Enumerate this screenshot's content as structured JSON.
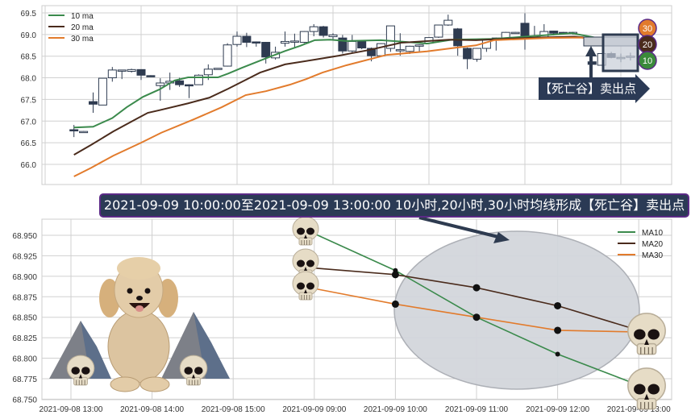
{
  "colors": {
    "ma10": "#3b8a4c",
    "ma20": "#4a2b1c",
    "ma30": "#e27b2c",
    "candle_dark": "#2e3b50",
    "annotation_bg": "#2b3a55",
    "annotation_border": "#5b2a86",
    "ellipse": "#d3d6dc"
  },
  "top_chart": {
    "annotation_label": "【死亡谷】卖出点",
    "badges": [
      "30",
      "20",
      "10"
    ]
  },
  "bottom_chart": {
    "title": "2021-09-09 10:00:00至2021-09-09 13:00:00 10小时,20小时,30小时均线形成【死亡谷】卖出点"
  },
  "decorations": [
    "poodle-illustration",
    "skull-icon",
    "mountain-illustration"
  ],
  "chart_data": [
    {
      "type": "candlestick",
      "ylim": [
        65.53,
        69.67
      ],
      "yticks": [
        "66.0",
        "66.5",
        "67.0",
        "67.5",
        "68.0",
        "68.5",
        "69.0",
        "69.5"
      ],
      "grid": true,
      "legend": "top-left",
      "legend_entries": [
        "10 ma",
        "20 ma",
        "30 ma"
      ],
      "ohlc": [
        [
          66.8,
          66.91,
          66.63,
          66.78
        ],
        [
          66.76,
          66.77,
          66.75,
          66.76
        ],
        [
          67.45,
          67.66,
          67.19,
          67.39
        ],
        [
          67.37,
          67.99,
          67.37,
          67.99
        ],
        [
          68.0,
          68.25,
          67.91,
          68.18
        ],
        [
          68.17,
          68.18,
          67.97,
          68.18
        ],
        [
          68.15,
          68.21,
          68.12,
          68.19
        ],
        [
          68.19,
          68.19,
          67.95,
          68.06
        ],
        [
          68.05,
          68.06,
          68.03,
          68.04
        ],
        [
          67.82,
          67.99,
          67.47,
          67.88
        ],
        [
          67.88,
          68.12,
          67.72,
          67.92
        ],
        [
          67.93,
          68.0,
          67.79,
          67.84
        ],
        [
          67.84,
          67.85,
          67.53,
          67.82
        ],
        [
          67.84,
          68.08,
          67.84,
          68.06
        ],
        [
          68.07,
          68.31,
          67.95,
          68.2
        ],
        [
          68.21,
          68.22,
          68.2,
          68.22
        ],
        [
          68.27,
          68.8,
          68.26,
          68.76
        ],
        [
          68.77,
          69.07,
          68.72,
          68.96
        ],
        [
          68.96,
          69.04,
          68.71,
          68.82
        ],
        [
          68.83,
          68.84,
          68.72,
          68.81
        ],
        [
          68.82,
          68.83,
          68.33,
          68.48
        ],
        [
          68.46,
          68.72,
          68.42,
          68.59
        ],
        [
          68.8,
          69.07,
          68.72,
          68.84
        ],
        [
          68.84,
          69.02,
          68.7,
          68.85
        ],
        [
          68.82,
          69.08,
          68.8,
          69.07
        ],
        [
          69.07,
          69.24,
          68.96,
          69.18
        ],
        [
          69.18,
          69.2,
          68.93,
          68.98
        ],
        [
          68.95,
          69.03,
          68.86,
          68.99
        ],
        [
          68.92,
          68.99,
          68.56,
          68.62
        ],
        [
          68.62,
          68.99,
          68.58,
          68.84
        ],
        [
          68.84,
          68.86,
          68.66,
          68.69
        ],
        [
          68.68,
          68.7,
          68.38,
          68.51
        ],
        [
          68.51,
          68.8,
          68.5,
          68.79
        ],
        [
          68.68,
          69.2,
          68.6,
          69.2
        ],
        [
          68.64,
          69.03,
          68.51,
          68.65
        ],
        [
          68.61,
          68.74,
          68.55,
          68.73
        ],
        [
          68.73,
          68.77,
          68.58,
          68.76
        ],
        [
          68.8,
          68.94,
          68.78,
          68.93
        ],
        [
          68.94,
          69.22,
          68.92,
          69.22
        ],
        [
          69.22,
          69.46,
          69.2,
          69.33
        ],
        [
          69.13,
          69.15,
          68.51,
          68.74
        ],
        [
          68.68,
          68.7,
          68.2,
          68.44
        ],
        [
          68.43,
          68.69,
          68.37,
          68.68
        ],
        [
          68.68,
          68.91,
          68.6,
          68.9
        ],
        [
          68.9,
          68.93,
          68.63,
          68.92
        ],
        [
          68.9,
          69.06,
          68.88,
          69.05
        ],
        [
          69.04,
          69.06,
          69.03,
          69.05
        ],
        [
          69.26,
          69.49,
          68.65,
          68.97
        ],
        [
          68.96,
          69.2,
          68.95,
          68.96
        ],
        [
          68.94,
          69.24,
          68.93,
          69.07
        ],
        [
          69.08,
          69.09,
          68.98,
          69.03
        ],
        [
          69.05,
          69.06,
          69.0,
          69.04
        ],
        [
          69.04,
          69.06,
          69.0,
          69.05
        ],
        null,
        [
          68.37,
          68.38,
          68.3,
          68.31
        ],
        [
          68.29,
          68.57,
          68.28,
          68.56
        ],
        [
          68.56,
          68.6,
          68.45,
          68.47
        ],
        [
          68.46,
          68.56,
          68.36,
          68.47
        ],
        [
          68.49,
          68.58,
          68.4,
          68.5
        ]
      ],
      "series": [
        {
          "name": "10 ma",
          "points": [
            [
              0,
              66.85
            ],
            [
              2,
              66.87
            ],
            [
              4,
              67.07
            ],
            [
              5.5,
              67.32
            ],
            [
              7.2,
              67.56
            ],
            [
              8.9,
              67.73
            ],
            [
              10.5,
              67.94
            ],
            [
              11.9,
              68.01
            ],
            [
              15,
              68.01
            ],
            [
              16.1,
              68.1
            ],
            [
              17.5,
              68.23
            ],
            [
              19.2,
              68.38
            ],
            [
              20.6,
              68.5
            ],
            [
              22,
              68.62
            ],
            [
              23.6,
              68.74
            ],
            [
              25.1,
              68.87
            ],
            [
              26.7,
              68.88
            ],
            [
              28.4,
              68.85
            ],
            [
              32,
              68.87
            ],
            [
              34,
              68.84
            ],
            [
              36.8,
              68.79
            ],
            [
              39.4,
              68.88
            ],
            [
              43.8,
              68.9
            ],
            [
              51.9,
              69.03
            ],
            [
              53.6,
              68.96
            ],
            [
              58.7,
              68.74
            ]
          ]
        },
        {
          "name": "20 ma",
          "points": [
            [
              0,
              66.22
            ],
            [
              1.8,
              66.45
            ],
            [
              4.1,
              66.76
            ],
            [
              6.6,
              67.06
            ],
            [
              7.7,
              67.19
            ],
            [
              8.9,
              67.25
            ],
            [
              11.9,
              67.41
            ],
            [
              14.1,
              67.54
            ],
            [
              16.1,
              67.75
            ],
            [
              17.8,
              67.94
            ],
            [
              19.4,
              68.12
            ],
            [
              22,
              68.31
            ],
            [
              25.1,
              68.42
            ],
            [
              27.6,
              68.51
            ],
            [
              29,
              68.57
            ],
            [
              30.7,
              68.64
            ],
            [
              34.1,
              68.81
            ],
            [
              39.1,
              68.88
            ],
            [
              41.9,
              68.87
            ],
            [
              48,
              68.93
            ],
            [
              52.2,
              68.95
            ],
            [
              55.1,
              68.9
            ],
            [
              58.7,
              68.77
            ]
          ]
        },
        {
          "name": "30 ma",
          "points": [
            [
              0,
              65.72
            ],
            [
              1.8,
              65.92
            ],
            [
              4.1,
              66.2
            ],
            [
              7,
              66.5
            ],
            [
              9.1,
              66.73
            ],
            [
              12.5,
              67.04
            ],
            [
              15.4,
              67.32
            ],
            [
              17.1,
              67.51
            ],
            [
              17.9,
              67.6
            ],
            [
              20,
              67.69
            ],
            [
              22.5,
              67.84
            ],
            [
              24.2,
              67.97
            ],
            [
              25.9,
              68.12
            ],
            [
              28.4,
              68.29
            ],
            [
              32.6,
              68.53
            ],
            [
              36.8,
              68.61
            ],
            [
              39.6,
              68.69
            ],
            [
              41.9,
              68.75
            ],
            [
              43.8,
              68.87
            ],
            [
              49.4,
              68.92
            ],
            [
              52.8,
              68.93
            ],
            [
              58.7,
              68.8
            ]
          ]
        }
      ]
    },
    {
      "type": "line",
      "title": "2021-09-09 10:00:00至2021-09-09 13:00:00 10小时,20小时,30小时均线形成【死亡谷】卖出点",
      "categories": [
        "2021-09-08 13:00",
        "2021-09-08 14:00",
        "2021-09-08 15:00",
        "2021-09-09 09:00",
        "2021-09-09 10:00",
        "2021-09-09 11:00",
        "2021-09-09 12:00",
        "2021-09-09 13:00"
      ],
      "yticks": [
        "68.750",
        "68.775",
        "68.800",
        "68.825",
        "68.850",
        "68.875",
        "68.900",
        "68.925",
        "68.950"
      ],
      "ylim": [
        68.75,
        68.995
      ],
      "grid": true,
      "legend": "top-right",
      "series": [
        {
          "name": "MA10",
          "values": [
            null,
            null,
            null,
            68.952,
            68.907,
            68.85,
            68.805,
            68.767
          ]
        },
        {
          "name": "MA20",
          "values": [
            null,
            null,
            null,
            68.91,
            68.902,
            68.886,
            68.864,
            68.834
          ]
        },
        {
          "name": "MA30",
          "values": [
            null,
            null,
            null,
            68.885,
            68.866,
            68.85,
            68.834,
            68.832
          ]
        }
      ]
    }
  ]
}
